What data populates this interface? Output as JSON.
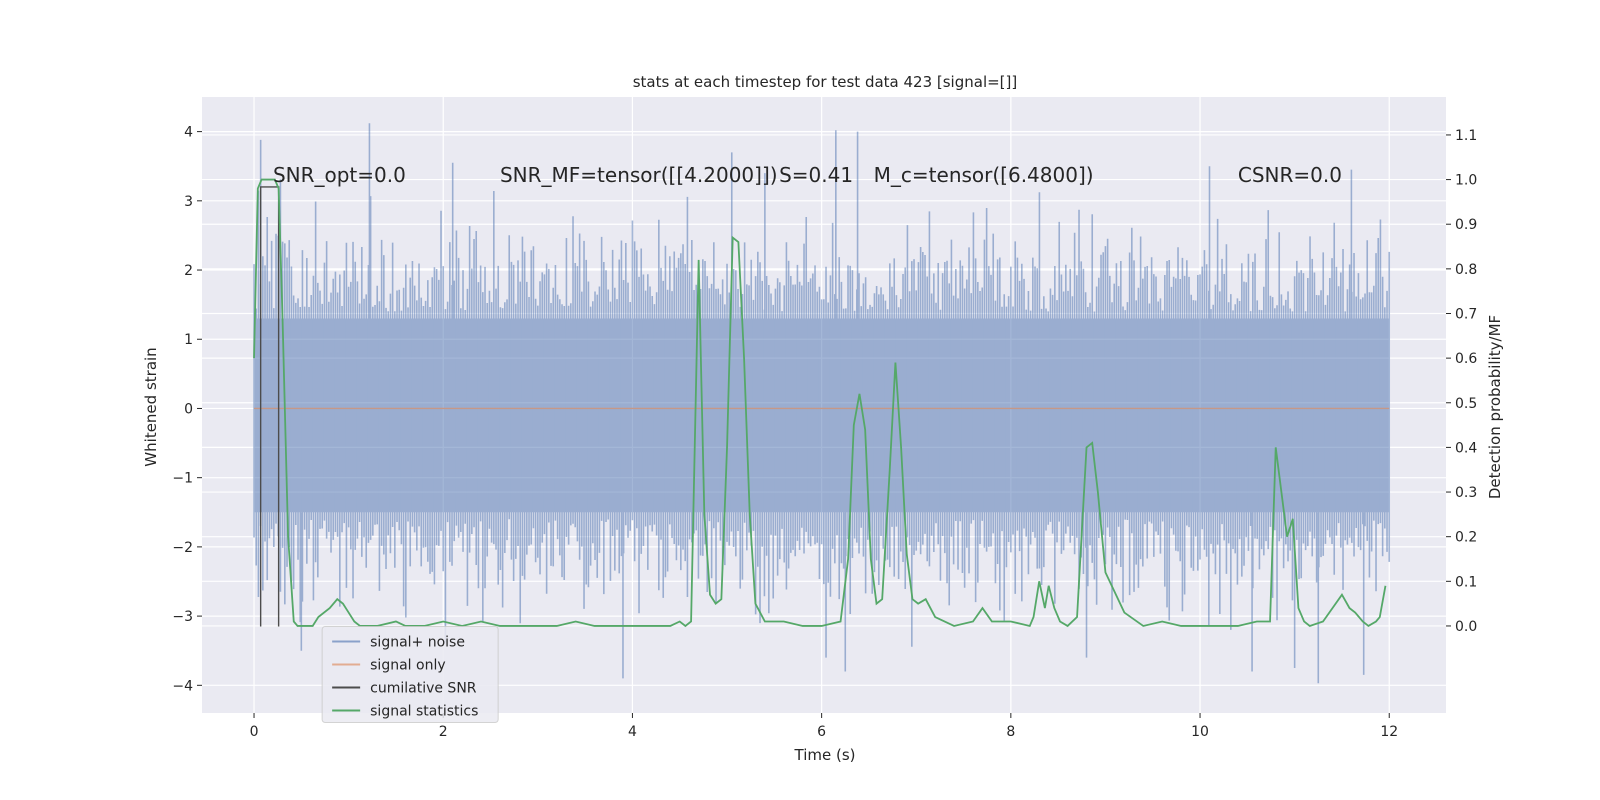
{
  "chart_data": {
    "type": "line",
    "title": "stats at each timestep for test data 423 [signal=[]]",
    "xlabel": "Time (s)",
    "ylabel_left": "Whitened strain",
    "ylabel_right": "Detection probability/MF",
    "xlim": [
      -0.55,
      12.6
    ],
    "ylim_left": [
      -4.4,
      4.5
    ],
    "ylim_right": [
      -0.195,
      1.185
    ],
    "x_ticks": [
      0,
      2,
      4,
      6,
      8,
      10,
      12
    ],
    "x_tick_labels": [
      "0",
      "2",
      "4",
      "6",
      "8",
      "10",
      "12"
    ],
    "y_left_ticks": [
      -4,
      -3,
      -2,
      -1,
      0,
      1,
      2,
      3,
      4
    ],
    "y_left_tick_labels": [
      "−4",
      "−3",
      "−2",
      "−1",
      "0",
      "1",
      "2",
      "3",
      "4"
    ],
    "y_right_ticks": [
      0.0,
      0.1,
      0.2,
      0.3,
      0.4,
      0.5,
      0.6,
      0.7,
      0.8,
      0.9,
      1.0,
      1.1
    ],
    "y_right_tick_labels": [
      "0.0",
      "0.1",
      "0.2",
      "0.3",
      "0.4",
      "0.5",
      "0.6",
      "0.7",
      "0.8",
      "0.9",
      "1.0",
      "1.1"
    ],
    "grid": true,
    "annotations": [
      {
        "text": "SNR_opt=0.0",
        "x": 0.2,
        "y": 3.3
      },
      {
        "text": "SNR_MF=tensor([[4.2000]])",
        "x": 2.6,
        "y": 3.3
      },
      {
        "text": "S=0.41",
        "x": 5.55,
        "y": 3.3
      },
      {
        "text": "M_c=tensor([6.4800])",
        "x": 6.55,
        "y": 3.3
      },
      {
        "text": "CSNR=0.0",
        "x": 10.4,
        "y": 3.3
      }
    ],
    "legend_position": "lower-left",
    "series": [
      {
        "name": "signal+ noise",
        "axis": "left",
        "color": "#4c72b0",
        "style": "noise band",
        "x_range": [
          0,
          12
        ],
        "dense_band": [
          -1.5,
          1.3
        ],
        "envelope_typical": [
          -2.5,
          2.3
        ],
        "spikes": [
          {
            "x": 0.07,
            "y": 3.88
          },
          {
            "x": 1.22,
            "y": 4.12
          },
          {
            "x": 2.1,
            "y": 3.55
          },
          {
            "x": 5.05,
            "y": 3.7
          },
          {
            "x": 5.4,
            "y": 3.4
          },
          {
            "x": 6.15,
            "y": 4.02
          },
          {
            "x": 6.38,
            "y": 4.0
          },
          {
            "x": 10.1,
            "y": 3.5
          },
          {
            "x": 11.6,
            "y": 3.45
          },
          {
            "x": 3.9,
            "y": -3.9
          },
          {
            "x": 6.25,
            "y": -3.8
          },
          {
            "x": 10.55,
            "y": -3.8
          },
          {
            "x": 11.0,
            "y": -3.75
          },
          {
            "x": 11.25,
            "y": -3.97
          },
          {
            "x": 11.73,
            "y": -3.85
          },
          {
            "x": 0.5,
            "y": -3.5
          },
          {
            "x": 8.8,
            "y": -3.6
          }
        ]
      },
      {
        "name": "signal only",
        "axis": "left",
        "color": "#dd8452",
        "x": [
          0,
          12
        ],
        "y": [
          0,
          0
        ]
      },
      {
        "name": "cumilative SNR",
        "axis": "left",
        "color": "#4c4c4c",
        "x": [
          0.07,
          0.07,
          0.26,
          0.26
        ],
        "y": [
          -3.15,
          3.2,
          3.2,
          -3.15
        ]
      },
      {
        "name": "signal statistics",
        "axis": "right",
        "color": "#55a868",
        "x": [
          0.0,
          0.04,
          0.08,
          0.1,
          0.16,
          0.22,
          0.26,
          0.3,
          0.36,
          0.42,
          0.46,
          0.5,
          0.56,
          0.62,
          0.68,
          0.8,
          0.88,
          0.94,
          1.0,
          1.06,
          1.12,
          1.2,
          1.3,
          1.5,
          1.6,
          1.8,
          2.0,
          2.2,
          2.4,
          2.6,
          2.8,
          3.0,
          3.2,
          3.4,
          3.6,
          3.8,
          4.0,
          4.2,
          4.4,
          4.5,
          4.56,
          4.62,
          4.7,
          4.76,
          4.82,
          4.88,
          4.94,
          5.0,
          5.06,
          5.12,
          5.18,
          5.24,
          5.3,
          5.4,
          5.6,
          5.8,
          6.0,
          6.2,
          6.28,
          6.34,
          6.4,
          6.46,
          6.52,
          6.58,
          6.64,
          6.72,
          6.78,
          6.84,
          6.9,
          6.96,
          7.02,
          7.1,
          7.2,
          7.4,
          7.6,
          7.7,
          7.8,
          8.0,
          8.2,
          8.24,
          8.3,
          8.36,
          8.4,
          8.46,
          8.52,
          8.6,
          8.7,
          8.8,
          8.86,
          8.92,
          9.0,
          9.2,
          9.4,
          9.6,
          9.8,
          10.0,
          10.2,
          10.4,
          10.6,
          10.74,
          10.8,
          10.86,
          10.92,
          10.98,
          11.04,
          11.1,
          11.16,
          11.3,
          11.4,
          11.5,
          11.58,
          11.64,
          11.72,
          11.78,
          11.86,
          11.9,
          11.96
        ],
        "y": [
          0.6,
          0.98,
          1.0,
          1.0,
          1.0,
          1.0,
          0.98,
          0.7,
          0.2,
          0.01,
          0.0,
          0.0,
          0.0,
          0.0,
          0.02,
          0.04,
          0.06,
          0.05,
          0.03,
          0.01,
          0.0,
          0.0,
          0.0,
          0.01,
          0.0,
          0.0,
          0.01,
          0.0,
          0.01,
          0.0,
          0.0,
          0.0,
          0.0,
          0.01,
          0.0,
          0.0,
          0.0,
          0.0,
          0.0,
          0.01,
          0.0,
          0.01,
          0.82,
          0.25,
          0.07,
          0.05,
          0.06,
          0.4,
          0.87,
          0.86,
          0.6,
          0.25,
          0.05,
          0.01,
          0.01,
          0.0,
          0.0,
          0.01,
          0.15,
          0.45,
          0.52,
          0.44,
          0.15,
          0.05,
          0.06,
          0.35,
          0.59,
          0.4,
          0.16,
          0.06,
          0.05,
          0.06,
          0.02,
          0.0,
          0.01,
          0.04,
          0.01,
          0.01,
          0.0,
          0.02,
          0.1,
          0.04,
          0.09,
          0.04,
          0.01,
          0.0,
          0.02,
          0.4,
          0.41,
          0.3,
          0.12,
          0.03,
          0.0,
          0.01,
          0.0,
          0.0,
          0.0,
          0.0,
          0.01,
          0.01,
          0.4,
          0.3,
          0.2,
          0.24,
          0.04,
          0.01,
          0.0,
          0.01,
          0.04,
          0.07,
          0.04,
          0.03,
          0.01,
          0.0,
          0.01,
          0.02,
          0.09
        ]
      }
    ]
  }
}
